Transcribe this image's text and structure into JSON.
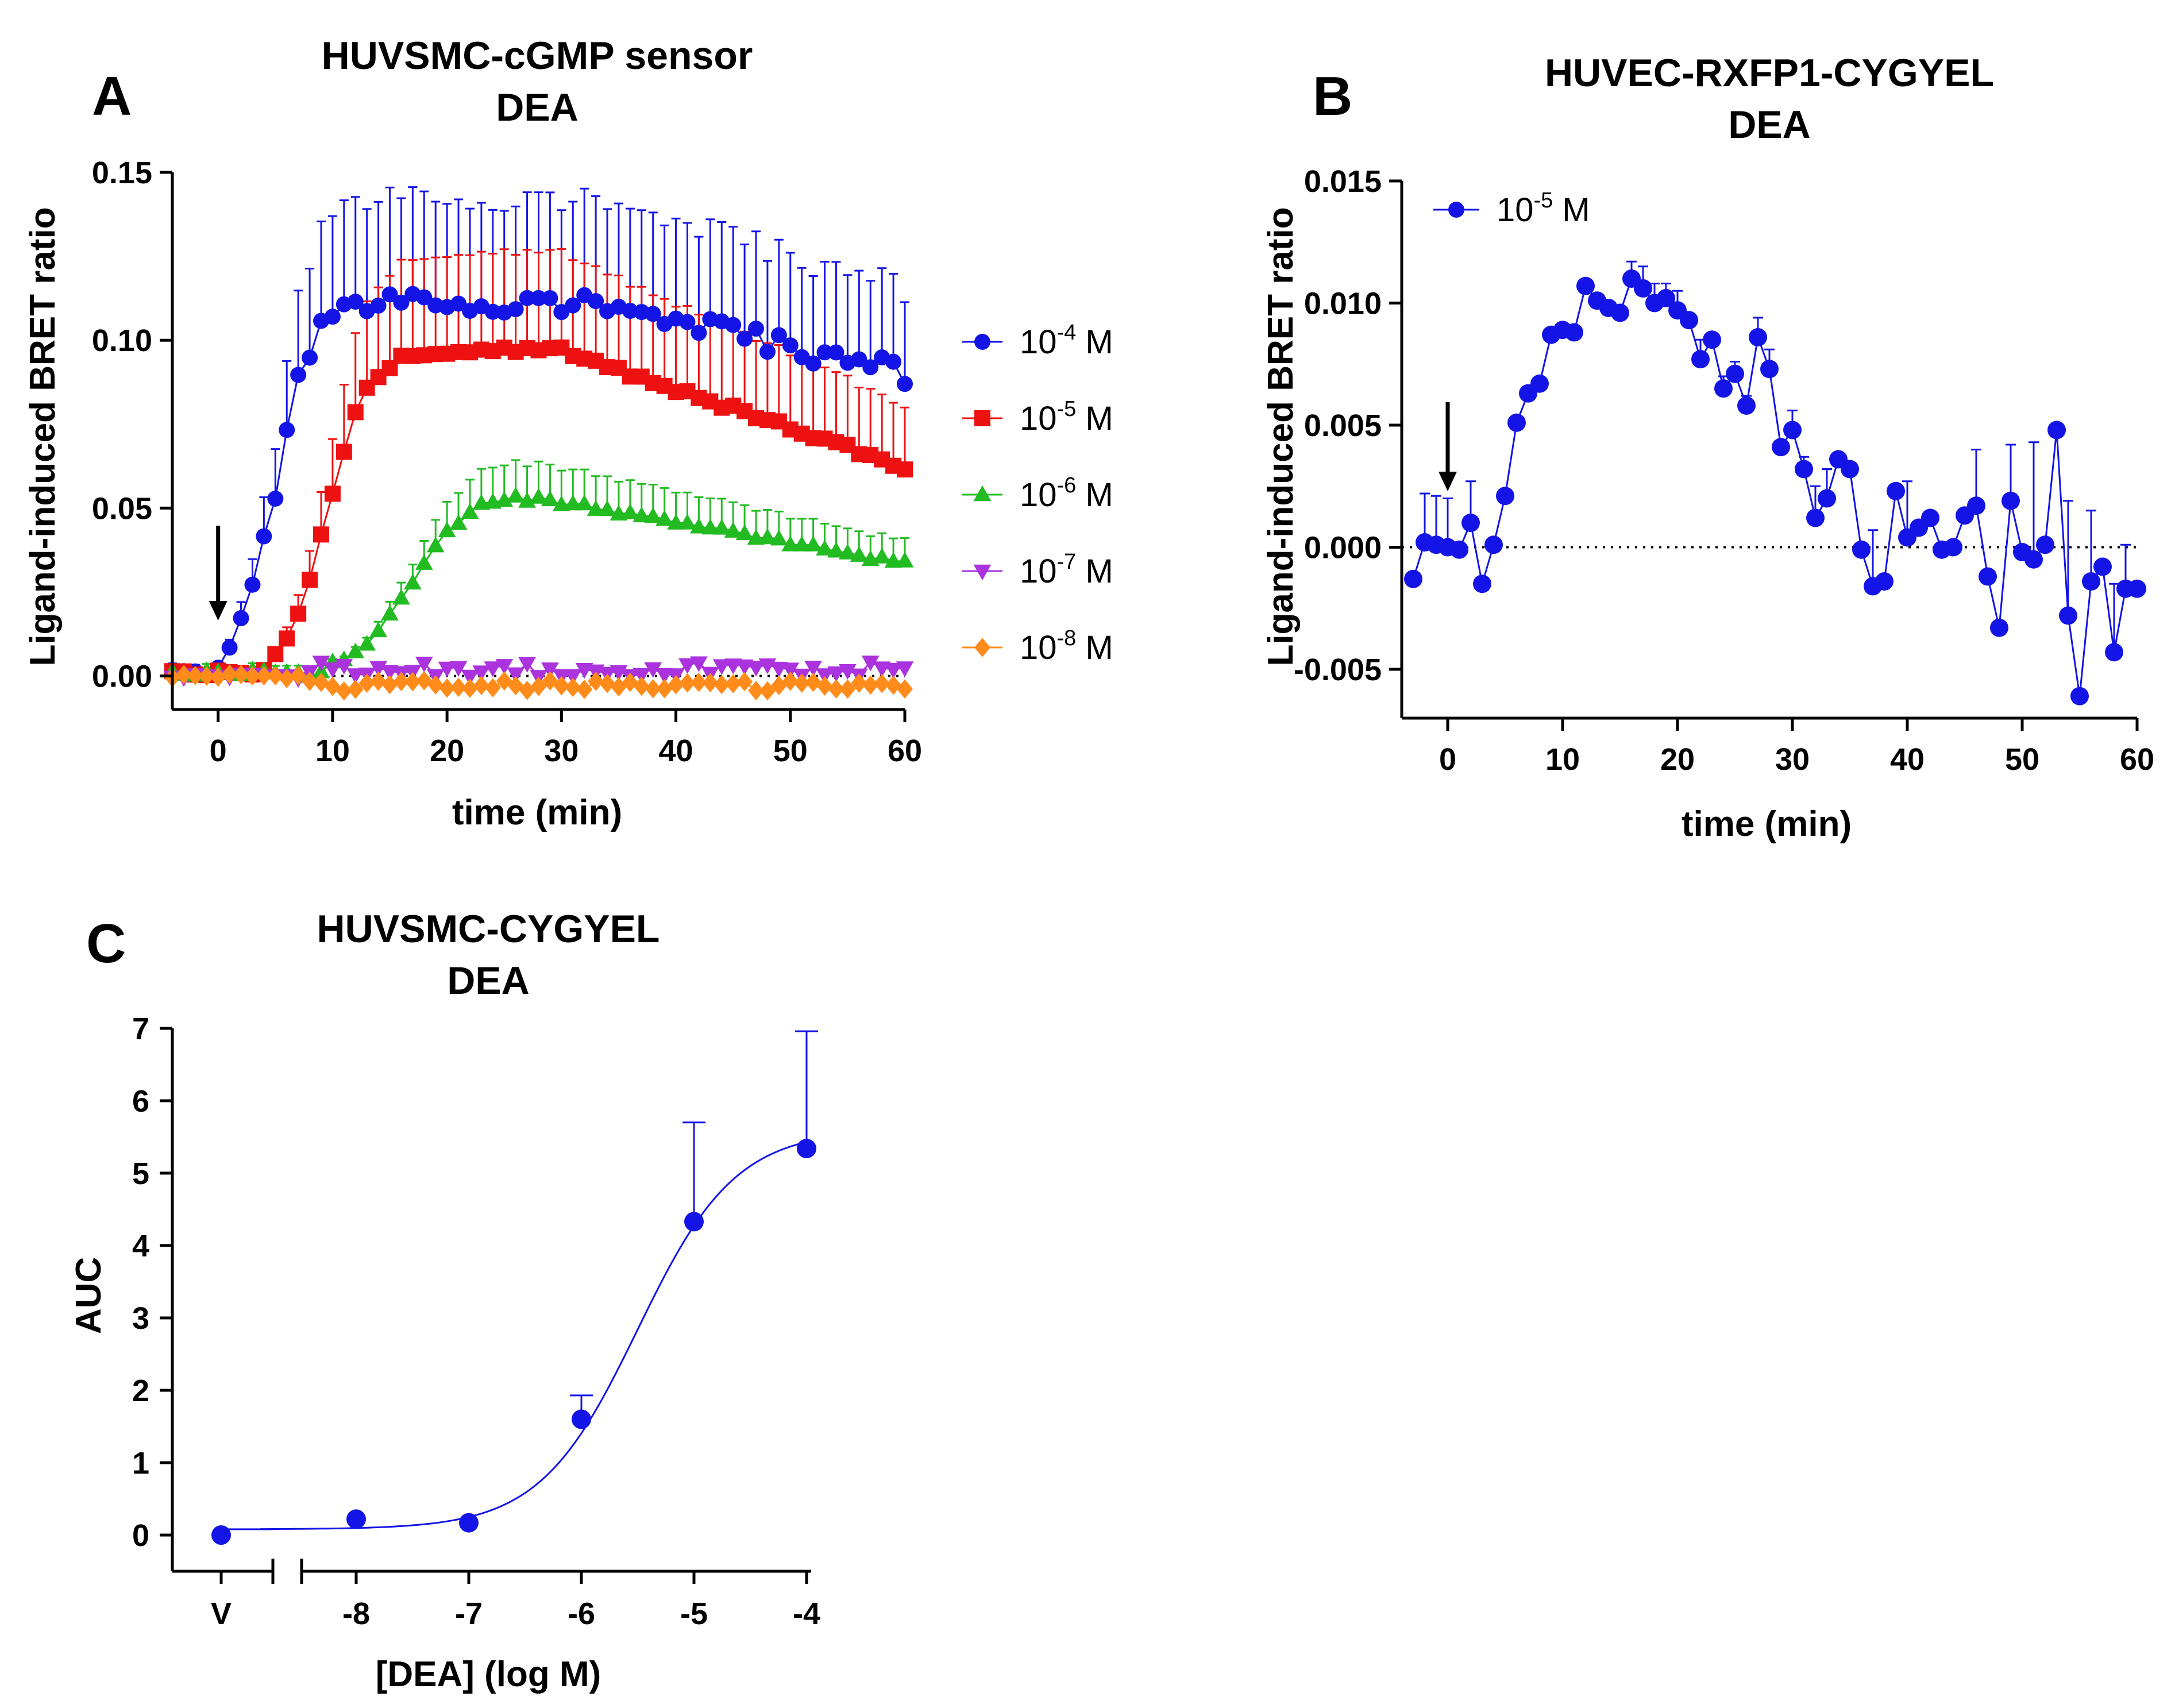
{
  "colors": {
    "blue": "#1414e6",
    "red": "#ee1111",
    "green": "#22bb22",
    "purple": "#aa33dd",
    "orange": "#ff8c1a",
    "axis": "#000000"
  },
  "chart_data": [
    {
      "panel": "A",
      "type": "line",
      "title_line1": "HUVSMC-cGMP sensor",
      "title_line2": "DEA",
      "xlabel": "time (min)",
      "ylabel": "Ligand-induced BRET ratio",
      "xlim": [
        -4,
        60
      ],
      "ylim": [
        -0.01,
        0.15
      ],
      "xticks": [
        0,
        10,
        20,
        30,
        40,
        50,
        60
      ],
      "xtick_labels": [
        "0",
        "10",
        "20",
        "30",
        "40",
        "50",
        "60"
      ],
      "yticks": [
        0.0,
        0.05,
        0.1,
        0.15
      ],
      "ytick_labels": [
        "0.00",
        "0.05",
        "0.10",
        "0.15"
      ],
      "zero_line": "dotted",
      "arrow_at_x": 0,
      "legend_position": "right",
      "series": [
        {
          "name": "10-4 M",
          "base": "10",
          "exp": "-4",
          "unit": " M",
          "color": "blue",
          "marker": "circle",
          "model": {
            "kind": "rise-decay",
            "onset": 0,
            "half": 5,
            "width": 1.6,
            "peak": 0.111,
            "peak_time": 33,
            "decay": 0.0007,
            "err_frac": 0.28,
            "noise": 0.0035
          }
        },
        {
          "name": "10-5 M",
          "base": "10",
          "exp": "-5",
          "unit": " M",
          "color": "red",
          "marker": "square",
          "model": {
            "kind": "rise-decay",
            "onset": 5,
            "half": 9.5,
            "width": 1.8,
            "peak": 0.097,
            "peak_time": 30,
            "decay": 0.0012,
            "err_frac": 0.3,
            "noise": 0.001
          }
        },
        {
          "name": "10-6 M",
          "base": "10",
          "exp": "-6",
          "unit": " M",
          "color": "green",
          "marker": "triangle-up",
          "model": {
            "kind": "rise-decay",
            "onset": 10,
            "half": 17,
            "width": 2.6,
            "peak": 0.056,
            "peak_time": 23.5,
            "decay": 0.0011,
            "err_frac": 0.2,
            "noise": 0.0008
          }
        },
        {
          "name": "10-7 M",
          "base": "10",
          "exp": "-7",
          "unit": " M",
          "color": "purple",
          "marker": "triangle-down",
          "model": {
            "kind": "flat",
            "level": 0.002,
            "noise": 0.0022
          }
        },
        {
          "name": "10-8 M",
          "base": "10",
          "exp": "-8",
          "unit": " M",
          "color": "orange",
          "marker": "diamond",
          "model": {
            "kind": "flat",
            "level": -0.003,
            "noise": 0.0016
          }
        }
      ]
    },
    {
      "panel": "B",
      "type": "line",
      "title_line1": "HUVEC-RXFP1-CYGYEL",
      "title_line2": "DEA",
      "xlabel": "time (min)",
      "ylabel": "Ligand-induced BRET ratio",
      "xlim": [
        -4,
        60
      ],
      "ylim": [
        -0.007,
        0.015
      ],
      "xticks": [
        0,
        10,
        20,
        30,
        40,
        50,
        60
      ],
      "xtick_labels": [
        "0",
        "10",
        "20",
        "30",
        "40",
        "50",
        "60"
      ],
      "yticks": [
        -0.005,
        0.0,
        0.005,
        0.01,
        0.015
      ],
      "ytick_labels": [
        "-0.005",
        "0.000",
        "0.005",
        "0.010",
        "0.015"
      ],
      "zero_line": "dotted",
      "arrow_at_x": 0,
      "legend_position": "top-left",
      "series": [
        {
          "name": "10-5 M",
          "base": "10",
          "exp": "-5",
          "unit": " M",
          "color": "blue",
          "marker": "circle",
          "x": [
            -3,
            -2,
            -1,
            0,
            1,
            2,
            3,
            4,
            5,
            6,
            7,
            8,
            9,
            10,
            11,
            12,
            13,
            14,
            15,
            16,
            17,
            18,
            19,
            20,
            21,
            22,
            23,
            24,
            25,
            26,
            27,
            28,
            29,
            30,
            31,
            32,
            33,
            34,
            35,
            36,
            37,
            38,
            39,
            40,
            41,
            42,
            43,
            44,
            45,
            46,
            47,
            48,
            49,
            50,
            51,
            52,
            53,
            54,
            55,
            56,
            57,
            58,
            59,
            60
          ],
          "y": [
            -0.0013,
            0.0002,
            0.0001,
            0.0,
            -0.0001,
            0.001,
            -0.0015,
            0.0001,
            0.0021,
            0.0051,
            0.0063,
            0.0067,
            0.0087,
            0.0089,
            0.0088,
            0.0107,
            0.0101,
            0.0098,
            0.0096,
            0.011,
            0.0106,
            0.01,
            0.0102,
            0.0097,
            0.0093,
            0.0077,
            0.0085,
            0.0065,
            0.0071,
            0.0058,
            0.0086,
            0.0073,
            0.0041,
            0.0048,
            0.0032,
            0.0012,
            0.002,
            0.0036,
            0.0032,
            -0.0001,
            -0.0016,
            -0.0014,
            0.0023,
            0.0004,
            0.0008,
            0.0012,
            -0.0001,
            0.0,
            0.0013,
            0.0017,
            -0.0012,
            -0.0033,
            0.0019,
            -0.0002,
            -0.0005,
            0.0001,
            0.0048,
            -0.0028,
            -0.0061,
            -0.0014,
            -0.0008,
            -0.0043,
            -0.0017,
            -0.0017
          ],
          "err": [
            0,
            0.002,
            0.002,
            0.002,
            0,
            0.0017,
            0,
            0,
            0,
            0,
            0,
            0,
            0,
            0,
            0,
            0,
            0,
            0,
            0,
            0.0007,
            0.0009,
            0.0008,
            0.0006,
            0.0008,
            0,
            0.0008,
            0,
            0.0005,
            0.0005,
            0.0004,
            0.0008,
            0.0008,
            0,
            0.0008,
            0.0005,
            0.0013,
            0.0012,
            0,
            0,
            0,
            0.0023,
            0,
            0,
            0.0023,
            0,
            0,
            0,
            0,
            0,
            0.0023,
            0,
            0,
            0.0023,
            0,
            0.0048,
            0,
            0,
            0.0047,
            0,
            0.0029,
            0,
            0.0028,
            0.0018,
            0
          ]
        }
      ]
    },
    {
      "panel": "C",
      "type": "scatter",
      "title_line1": "HUVSMC-CYGYEL",
      "title_line2": "DEA",
      "xlabel": "[DEA] (log M)",
      "ylabel": "AUC",
      "xlim": [
        -9.2,
        -3.9
      ],
      "ylim": [
        -0.5,
        7
      ],
      "xticks": [
        -8,
        -7,
        -6,
        -5,
        -4
      ],
      "xtick_labels": [
        "-8",
        "-7",
        "-6",
        "-5",
        "-4"
      ],
      "vehicle_label": "V",
      "yticks": [
        0,
        1,
        2,
        3,
        4,
        5,
        6,
        7
      ],
      "ytick_labels": [
        "0",
        "1",
        "2",
        "3",
        "4",
        "5",
        "6",
        "7"
      ],
      "points": {
        "x": [
          -8,
          -7,
          -6,
          -5,
          -4
        ],
        "y": [
          0.22,
          0.17,
          1.6,
          4.33,
          5.34
        ],
        "err": [
          0.0,
          0.0,
          0.33,
          1.37,
          1.62
        ]
      },
      "vehicle_point": {
        "y": 0.0
      },
      "fit": {
        "bottom": 0.08,
        "top": 5.6,
        "logEC50": -5.5,
        "hill": 1.0
      }
    }
  ]
}
